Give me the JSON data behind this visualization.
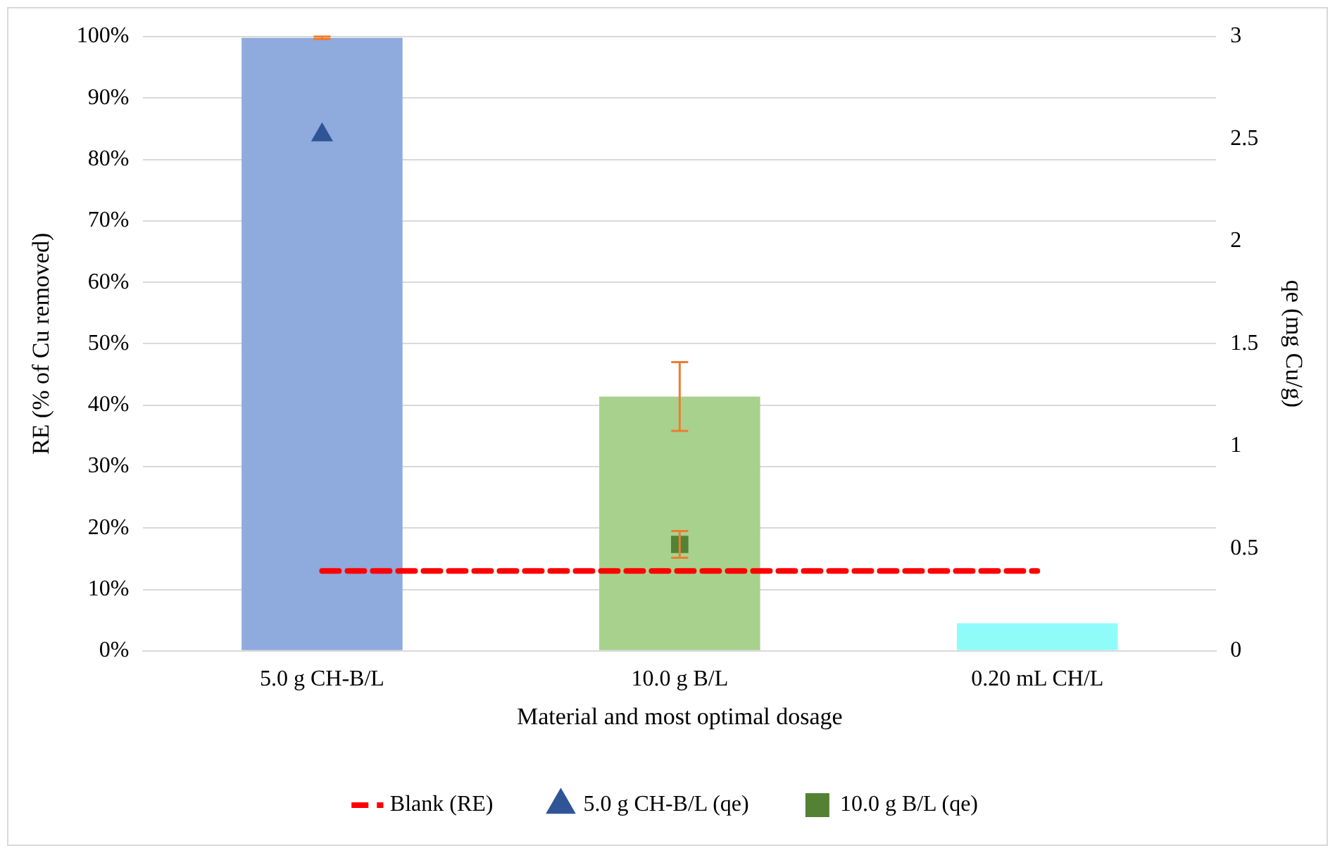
{
  "chart_data": {
    "type": "bar",
    "xlabel": "Material and most optimal dosage",
    "ylabel": "RE (% of Cu removed)",
    "y2label": "qe (mg Cu/g)",
    "categories": [
      "5.0 g CH-B/L",
      "10.0 g B/L",
      "0.20 mL CH/L"
    ],
    "series": [
      {
        "colors": [
          "#8faadc",
          "#a9d18e",
          "#8ffcfa"
        ],
        "values": [
          99.8,
          41.4,
          4.5
        ],
        "errors": [
          0.2,
          5.6,
          null
        ]
      },
      {
        "type": "line",
        "name": "Blank (RE)",
        "color": "#ff0000",
        "values": [
          13,
          13,
          13
        ],
        "line_style": "dashed",
        "marker": "none"
      },
      {
        "type": "scatter",
        "name": "5.0 g CH-B/L (qe)",
        "color": "#2f5597",
        "axis": "y2",
        "marker": "triangle",
        "x": [
          "5.0 g CH-B/L"
        ],
        "values": [
          2.52
        ]
      },
      {
        "type": "scatter",
        "name": "10.0 g B/L (qe)",
        "color": "#548235",
        "axis": "y2",
        "marker": "square",
        "x": [
          "10.0 g B/L"
        ],
        "values": [
          0.52
        ],
        "errors": [
          0.065
        ]
      }
    ],
    "ylim": [
      0,
      100
    ],
    "yticks": [
      {
        "value": 0,
        "label": "0%"
      },
      {
        "value": 10,
        "label": "10%"
      },
      {
        "value": 20,
        "label": "20%"
      },
      {
        "value": 30,
        "label": "30%"
      },
      {
        "value": 40,
        "label": "40%"
      },
      {
        "value": 50,
        "label": "50%"
      },
      {
        "value": 60,
        "label": "60%"
      },
      {
        "value": 70,
        "label": "70%"
      },
      {
        "value": 80,
        "label": "80%"
      },
      {
        "value": 90,
        "label": "90%"
      },
      {
        "value": 100,
        "label": "100%"
      }
    ],
    "y2lim": [
      0,
      3
    ],
    "y2ticks": [
      0,
      0.5,
      1,
      1.5,
      2,
      2.5,
      3
    ],
    "grid": "y",
    "legend": "bottom"
  }
}
